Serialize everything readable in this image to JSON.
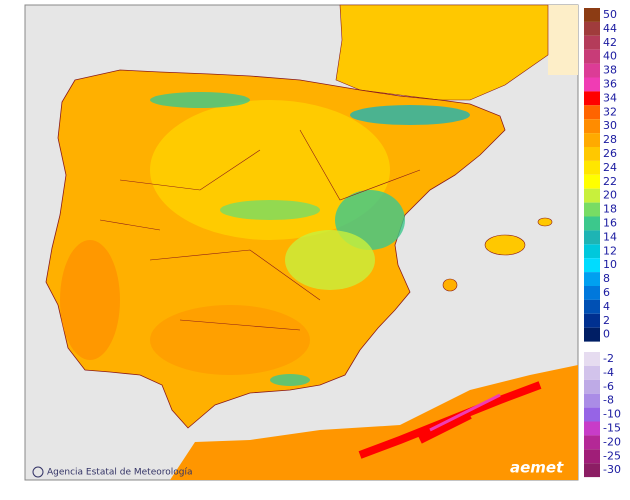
{
  "map": {
    "credit": "Agencia Estatal de Meteorología",
    "logo": "aemet",
    "legend": {
      "upper": [
        {
          "value": 50,
          "color": "#8c3c14"
        },
        {
          "value": 44,
          "color": "#a03c3c"
        },
        {
          "value": 42,
          "color": "#b43c5a"
        },
        {
          "value": 40,
          "color": "#c83c78"
        },
        {
          "value": 38,
          "color": "#dc3c96"
        },
        {
          "value": 36,
          "color": "#f03cb4"
        },
        {
          "value": 34,
          "color": "#ff0000"
        },
        {
          "value": 32,
          "color": "#ff6400"
        },
        {
          "value": 30,
          "color": "#ff8c00"
        },
        {
          "value": 28,
          "color": "#ffaa00"
        },
        {
          "value": 26,
          "color": "#ffc800"
        },
        {
          "value": 24,
          "color": "#ffe600"
        },
        {
          "value": 22,
          "color": "#ffff00"
        },
        {
          "value": 20,
          "color": "#c8f03c"
        },
        {
          "value": 18,
          "color": "#78dc64"
        },
        {
          "value": 16,
          "color": "#3cc88c"
        },
        {
          "value": 14,
          "color": "#1eb4b4"
        },
        {
          "value": 12,
          "color": "#00c8dc"
        },
        {
          "value": 10,
          "color": "#00dcff"
        },
        {
          "value": 8,
          "color": "#00a0f0"
        },
        {
          "value": 6,
          "color": "#0078dc"
        },
        {
          "value": 4,
          "color": "#0050b4"
        },
        {
          "value": 2,
          "color": "#003090"
        },
        {
          "value": 0,
          "color": "#001e64"
        }
      ],
      "lower": [
        {
          "value": -2,
          "color": "#e6dcf0"
        },
        {
          "value": -4,
          "color": "#d2c3eb"
        },
        {
          "value": -6,
          "color": "#beaae6"
        },
        {
          "value": -8,
          "color": "#aa8ce6"
        },
        {
          "value": -10,
          "color": "#9664e6"
        },
        {
          "value": -15,
          "color": "#c83cc8"
        },
        {
          "value": -20,
          "color": "#b42896"
        },
        {
          "value": -25,
          "color": "#a01e78"
        },
        {
          "value": -30,
          "color": "#8c1e64"
        }
      ]
    }
  }
}
